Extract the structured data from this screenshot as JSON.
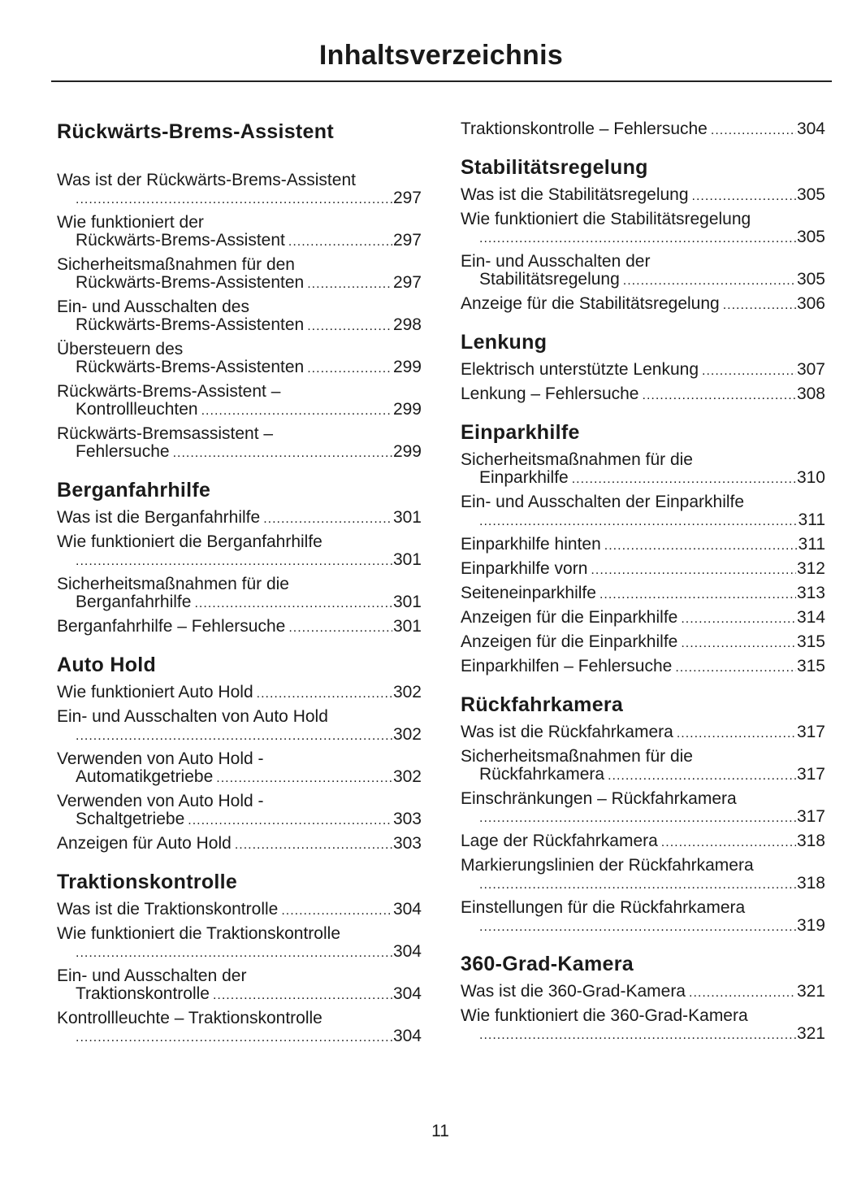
{
  "title": "Inhaltsverzeichnis",
  "page_number": "11",
  "columns": [
    [
      {
        "heading": "Rückwärts-Brems-Assistent",
        "entries": [
          {
            "text": "Was ist der Rückwärts-Brems-Assistent",
            "cont": "",
            "page": "297"
          },
          {
            "text": "Wie funktioniert der",
            "cont": "Rückwärts-Brems-Assistent",
            "page": "297"
          },
          {
            "text": "Sicherheitsmaßnahmen für den",
            "cont": "Rückwärts-Brems-Assistenten",
            "page": "297"
          },
          {
            "text": "Ein- und Ausschalten des",
            "cont": "Rückwärts-Brems-Assistenten",
            "page": "298"
          },
          {
            "text": "Übersteuern des",
            "cont": "Rückwärts-Brems-Assistenten",
            "page": "299"
          },
          {
            "text": "Rückwärts-Brems-Assistent –",
            "cont": "Kontrollleuchten",
            "page": "299"
          },
          {
            "text": "Rückwärts-Bremsassistent –",
            "cont": "Fehlersuche",
            "page": "299"
          }
        ]
      },
      {
        "heading": "Berganfahrhilfe",
        "entries": [
          {
            "text": "Was ist die Berganfahrhilfe",
            "page": "301"
          },
          {
            "text": "Wie funktioniert die Berganfahrhilfe",
            "cont": "",
            "page": "301"
          },
          {
            "text": "Sicherheitsmaßnahmen für die",
            "cont": "Berganfahrhilfe",
            "page": "301"
          },
          {
            "text": "Berganfahrhilfe – Fehlersuche",
            "page": "301"
          }
        ]
      },
      {
        "heading": "Auto Hold",
        "entries": [
          {
            "text": "Wie funktioniert Auto Hold",
            "page": "302"
          },
          {
            "text": "Ein- und Ausschalten von Auto Hold",
            "cont": "",
            "page": "302"
          },
          {
            "text": "Verwenden von Auto Hold -",
            "cont": "Automatikgetriebe",
            "page": "302"
          },
          {
            "text": "Verwenden von Auto Hold -",
            "cont": "Schaltgetriebe",
            "page": "303"
          },
          {
            "text": "Anzeigen für Auto Hold",
            "page": "303"
          }
        ]
      },
      {
        "heading": "Traktionskontrolle",
        "entries": [
          {
            "text": "Was ist die Traktionskontrolle",
            "page": "304"
          },
          {
            "text": "Wie funktioniert die Traktionskontrolle",
            "cont": "",
            "page": "304"
          },
          {
            "text": "Ein- und Ausschalten der",
            "cont": "Traktionskontrolle",
            "page": "304"
          },
          {
            "text": "Kontrollleuchte – Traktionskontrolle",
            "cont": "",
            "page": "304"
          }
        ]
      }
    ],
    [
      {
        "heading": "",
        "entries": [
          {
            "text": "Traktionskontrolle – Fehlersuche",
            "page": "304"
          }
        ]
      },
      {
        "heading": "Stabilitätsregelung",
        "entries": [
          {
            "text": "Was ist die Stabilitätsregelung",
            "page": "305"
          },
          {
            "text": "Wie funktioniert die Stabilitätsregelung",
            "cont": "",
            "page": "305"
          },
          {
            "text": "Ein- und Ausschalten der",
            "cont": "Stabilitätsregelung",
            "page": "305"
          },
          {
            "text": "Anzeige für die Stabilitätsregelung",
            "page": "306"
          }
        ]
      },
      {
        "heading": "Lenkung",
        "entries": [
          {
            "text": "Elektrisch unterstützte Lenkung",
            "page": "307"
          },
          {
            "text": "Lenkung – Fehlersuche",
            "page": "308"
          }
        ]
      },
      {
        "heading": "Einparkhilfe",
        "entries": [
          {
            "text": "Sicherheitsmaßnahmen für die",
            "cont": "Einparkhilfe",
            "page": "310"
          },
          {
            "text": "Ein- und Ausschalten der Einparkhilfe",
            "cont": "",
            "page": "311"
          },
          {
            "text": "Einparkhilfe hinten",
            "page": "311"
          },
          {
            "text": "Einparkhilfe vorn",
            "page": "312"
          },
          {
            "text": "Seiteneinparkhilfe",
            "page": "313"
          },
          {
            "text": "Anzeigen für die Einparkhilfe",
            "page": "314"
          },
          {
            "text": "Anzeigen für die Einparkhilfe",
            "page": "315"
          },
          {
            "text": "Einparkhilfen – Fehlersuche",
            "page": "315"
          }
        ]
      },
      {
        "heading": "Rückfahrkamera",
        "entries": [
          {
            "text": "Was ist die Rückfahrkamera",
            "page": "317"
          },
          {
            "text": "Sicherheitsmaßnahmen für die",
            "cont": "Rückfahrkamera",
            "page": "317"
          },
          {
            "text": "Einschränkungen – Rückfahrkamera",
            "cont": "",
            "page": "317"
          },
          {
            "text": "Lage der Rückfahrkamera",
            "page": "318"
          },
          {
            "text": "Markierungslinien der Rückfahrkamera",
            "cont": "",
            "page": "318"
          },
          {
            "text": "Einstellungen für die Rückfahrkamera",
            "cont": "",
            "page": "319"
          }
        ]
      },
      {
        "heading": "360-Grad-Kamera",
        "entries": [
          {
            "text": "Was ist die 360-Grad-Kamera",
            "page": "321"
          },
          {
            "text": "Wie funktioniert die 360-Grad-Kamera",
            "cont": "",
            "page": "321"
          }
        ]
      }
    ]
  ]
}
